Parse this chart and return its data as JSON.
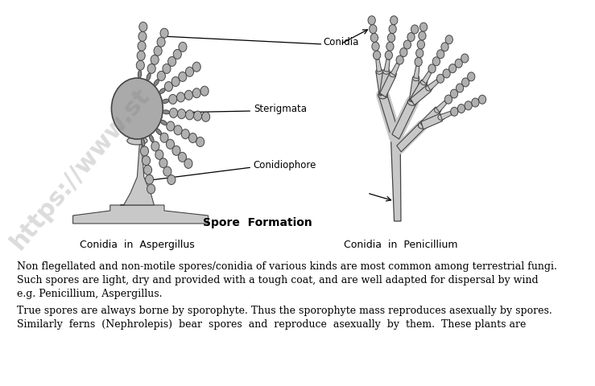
{
  "bg_color": "#ffffff",
  "watermark_text": "https://www.st",
  "draw_color": "#444444",
  "fill_vesicle": "#aaaaaa",
  "fill_light": "#c8c8c8",
  "fill_stem": "#bbbbbb",
  "fill_conidia": "#b0b0b0",
  "label_conidia": "Conidia",
  "label_sterigmata": "Sterigmata",
  "label_conidiophore": "Conidiophore",
  "label_aspergillus": "Conidia  in  Aspergillus",
  "label_penicillium": "Conidia  in  Penicillium",
  "label_spore_formation": "Spore  Formation",
  "text_line1": "Non flegellated and non-motile spores/conidia of various kinds are most common among terrestrial fungi.",
  "text_line2": "Such spores are light, dry and provided with a tough coat, and are well adapted for dispersal by wind",
  "text_line3": "e.g. Penicillium, Aspergillus.",
  "text_line4": "True spores are always borne by sporophyte. Thus the sporophyte mass reproduces asexually by spores.",
  "text_line5": "Similarly  ferns  (Nephrolepis)  bear  spores  and  reproduce  asexually  by  them.  These plants are",
  "font_size_label": 8.5,
  "font_size_text": 9,
  "font_size_spore": 10
}
